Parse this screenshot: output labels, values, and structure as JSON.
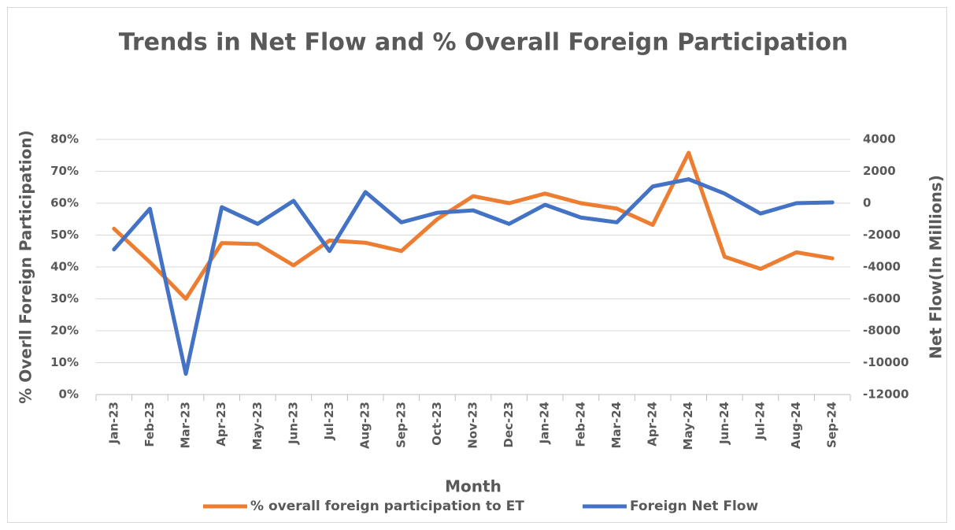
{
  "chart_data": {
    "type": "line",
    "title": "Trends in Net Flow and % Overall Foreign Participation",
    "x_label": "Month",
    "y_label": "% Overll Foreign Participation)",
    "y2_label": "Net Flow(In Millions)",
    "categories": [
      "Jan-23",
      "Feb-23",
      "Mar-23",
      "Apr-23",
      "May-23",
      "Jun-23",
      "Jul-23",
      "Aug-23",
      "Sep-23",
      "Oct-23",
      "Nov-23",
      "Dec-23",
      "Jan-24",
      "Feb-24",
      "Mar-24",
      "Apr-24",
      "May-24",
      "Jun-24",
      "Jul-24",
      "Aug-24",
      "Sep-24"
    ],
    "series": [
      {
        "name": "% overall foreign participation to ET",
        "color": "#ed7d31",
        "values": [
          52,
          41.5,
          30,
          47.5,
          47.2,
          40.5,
          48.3,
          47.6,
          45,
          55,
          62.2,
          60,
          63,
          60,
          58.3,
          53.2,
          75.8,
          43.2,
          39.4,
          44.6,
          42.7
        ]
      },
      {
        "name": "Foreign Net Flow",
        "color": "#4472c4",
        "axis": "y2",
        "values": [
          -2900,
          -350,
          -10700,
          -250,
          -1300,
          150,
          -3000,
          700,
          -1200,
          -600,
          -450,
          -1300,
          -100,
          -900,
          -1200,
          1050,
          1500,
          600,
          -650,
          0,
          50
        ]
      }
    ],
    "ylim": [
      0,
      80
    ],
    "yticks": [
      {
        "value": 0,
        "label": "0%"
      },
      {
        "value": 10,
        "label": "10%"
      },
      {
        "value": 20,
        "label": "20%"
      },
      {
        "value": 30,
        "label": "30%"
      },
      {
        "value": 40,
        "label": "40%"
      },
      {
        "value": 50,
        "label": "50%"
      },
      {
        "value": 60,
        "label": "60%"
      },
      {
        "value": 70,
        "label": "70%"
      },
      {
        "value": 80,
        "label": "80%"
      }
    ],
    "y2lim": [
      -12000,
      4000
    ],
    "y2ticks": [
      -12000,
      -10000,
      -8000,
      -6000,
      -4000,
      -2000,
      0,
      2000,
      4000
    ],
    "grid": true,
    "legend": "bottom"
  }
}
